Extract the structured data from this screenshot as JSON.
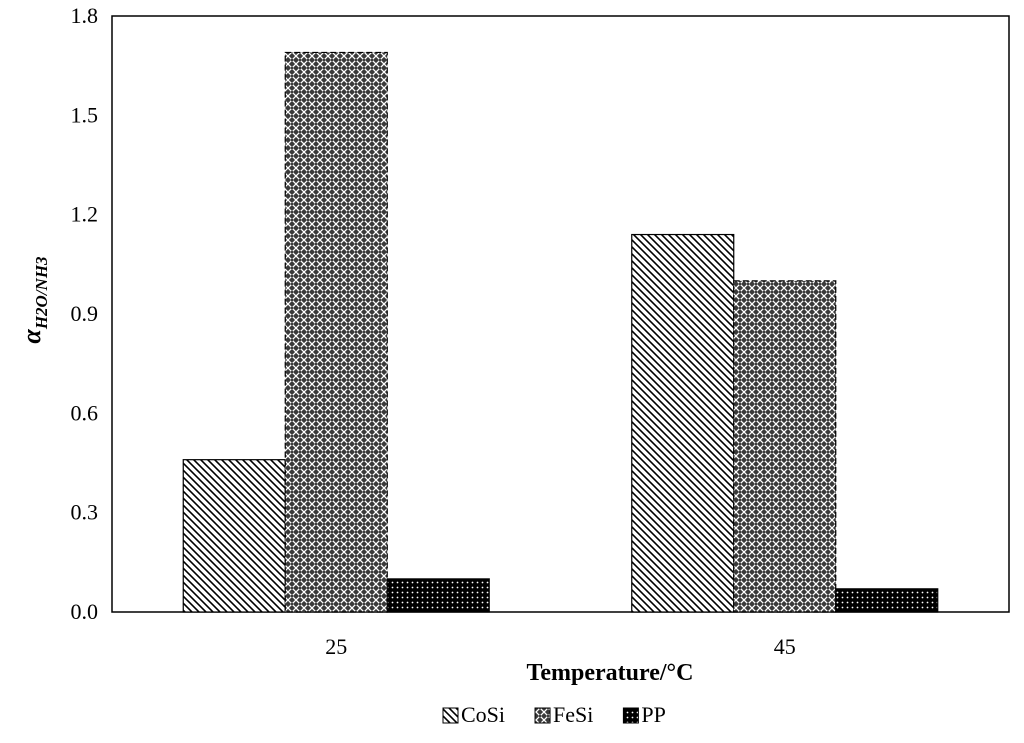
{
  "chart_data": {
    "type": "bar",
    "categories": [
      "25",
      "45"
    ],
    "series": [
      {
        "name": "CoSi",
        "values": [
          0.46,
          1.14
        ],
        "pattern": "diagonal-hatch"
      },
      {
        "name": "FeSi",
        "values": [
          1.69,
          1.0
        ],
        "pattern": "crosshatch"
      },
      {
        "name": "PP",
        "values": [
          0.1,
          0.07
        ],
        "pattern": "dense-dots"
      }
    ],
    "xlabel": "Temperature/°C",
    "ylabel": {
      "main": "α",
      "subscript": "H2O/NH3"
    },
    "ylim": [
      0,
      1.8
    ],
    "yticks": [
      "0.0",
      "0.3",
      "0.6",
      "0.9",
      "1.2",
      "1.5",
      "1.8"
    ],
    "grid": false,
    "legend_position": "bottom",
    "colors": {
      "ink": "#000000",
      "background": "#ffffff"
    }
  }
}
